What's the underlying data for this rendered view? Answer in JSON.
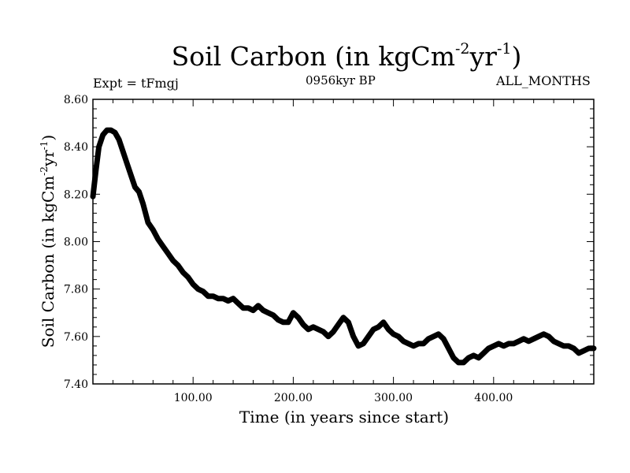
{
  "header": {
    "title_main": "Soil Carbon (in kgCm",
    "title_sup1": "-2",
    "title_mid": "yr",
    "title_sup2": "-1",
    "title_end": ")",
    "expt": "Expt = tFmgj",
    "period": "0956kyr BP",
    "months": "ALL_MONTHS"
  },
  "chart_data": {
    "type": "line",
    "title": "Soil Carbon (in kgCm-2yr-1)",
    "xlabel": "Time (in years since start)",
    "ylabel_main": "Soil Carbon (in kgCm",
    "ylabel_sup1": "-2",
    "ylabel_mid": "yr",
    "ylabel_sup2": "-1",
    "ylabel_end": ")",
    "xlim": [
      0,
      500
    ],
    "ylim": [
      7.4,
      8.6
    ],
    "x_ticks": [
      100,
      200,
      300,
      400
    ],
    "x_tick_labels": [
      "100.00",
      "200.00",
      "300.00",
      "400.00"
    ],
    "y_ticks": [
      7.4,
      7.6,
      7.8,
      8.0,
      8.2,
      8.4,
      8.6
    ],
    "y_tick_labels": [
      "7.40",
      "7.60",
      "7.80",
      "8.00",
      "8.20",
      "8.40",
      "8.60"
    ],
    "series": [
      {
        "name": "Soil Carbon",
        "x": [
          0,
          3,
          6,
          10,
          14,
          18,
          22,
          26,
          30,
          34,
          38,
          42,
          46,
          50,
          55,
          60,
          65,
          70,
          75,
          80,
          85,
          90,
          95,
          100,
          105,
          110,
          115,
          120,
          125,
          130,
          135,
          140,
          145,
          150,
          155,
          160,
          165,
          170,
          175,
          180,
          185,
          190,
          195,
          200,
          205,
          210,
          215,
          220,
          225,
          230,
          235,
          240,
          245,
          250,
          255,
          260,
          265,
          270,
          275,
          280,
          285,
          290,
          295,
          300,
          305,
          310,
          315,
          320,
          325,
          330,
          335,
          340,
          345,
          350,
          355,
          360,
          365,
          370,
          375,
          380,
          385,
          390,
          395,
          400,
          405,
          410,
          415,
          420,
          425,
          430,
          435,
          440,
          445,
          450,
          455,
          460,
          465,
          470,
          475,
          480,
          485,
          490,
          495,
          500
        ],
        "y": [
          8.19,
          8.3,
          8.4,
          8.45,
          8.47,
          8.47,
          8.46,
          8.43,
          8.38,
          8.33,
          8.28,
          8.23,
          8.21,
          8.16,
          8.08,
          8.05,
          8.01,
          7.98,
          7.95,
          7.92,
          7.9,
          7.87,
          7.85,
          7.82,
          7.8,
          7.79,
          7.77,
          7.77,
          7.76,
          7.76,
          7.75,
          7.76,
          7.74,
          7.72,
          7.72,
          7.71,
          7.73,
          7.71,
          7.7,
          7.69,
          7.67,
          7.66,
          7.66,
          7.7,
          7.68,
          7.65,
          7.63,
          7.64,
          7.63,
          7.62,
          7.6,
          7.62,
          7.65,
          7.68,
          7.66,
          7.6,
          7.56,
          7.57,
          7.6,
          7.63,
          7.64,
          7.66,
          7.63,
          7.61,
          7.6,
          7.58,
          7.57,
          7.56,
          7.57,
          7.57,
          7.59,
          7.6,
          7.61,
          7.59,
          7.55,
          7.51,
          7.49,
          7.49,
          7.51,
          7.52,
          7.51,
          7.53,
          7.55,
          7.56,
          7.57,
          7.56,
          7.57,
          7.57,
          7.58,
          7.59,
          7.58,
          7.59,
          7.6,
          7.61,
          7.6,
          7.58,
          7.57,
          7.56,
          7.56,
          7.55,
          7.53,
          7.54,
          7.55,
          7.55
        ]
      }
    ]
  }
}
